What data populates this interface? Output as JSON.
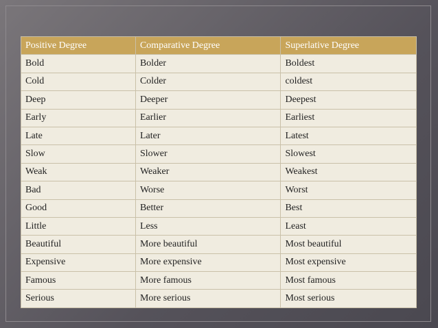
{
  "table": {
    "header": [
      "Positive Degree",
      "Comparative Degree",
      "Superlative Degree"
    ],
    "rows": [
      [
        "Bold",
        "Bolder",
        "Boldest"
      ],
      [
        "Cold",
        "Colder",
        "coldest"
      ],
      [
        "Deep",
        "Deeper",
        "Deepest"
      ],
      [
        "Early",
        "Earlier",
        "Earliest"
      ],
      [
        "Late",
        "Later",
        "Latest"
      ],
      [
        "Slow",
        "Slower",
        "Slowest"
      ],
      [
        "Weak",
        "Weaker",
        "Weakest"
      ],
      [
        "Bad",
        "Worse",
        "Worst"
      ],
      [
        "Good",
        "Better",
        "Best"
      ],
      [
        "Little",
        "Less",
        "Least"
      ],
      [
        "Beautiful",
        "More beautiful",
        "Most beautiful"
      ],
      [
        "Expensive",
        "More expensive",
        "Most expensive"
      ],
      [
        "Famous",
        "More famous",
        "Most famous"
      ],
      [
        "Serious",
        "More serious",
        "Most serious"
      ]
    ]
  }
}
